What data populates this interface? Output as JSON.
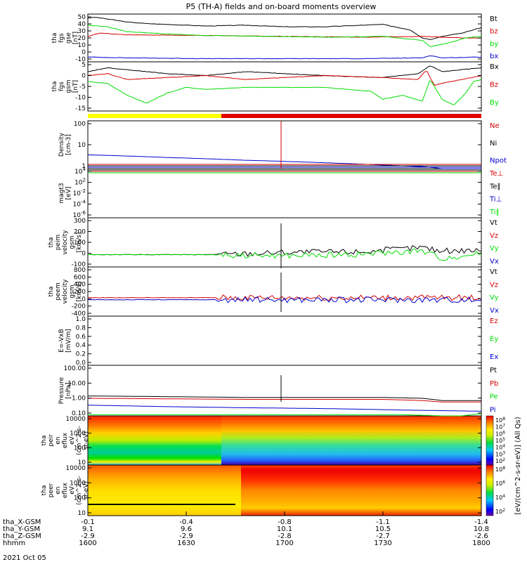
{
  "title": "P5 (TH-A) fields and on-board moments overview",
  "colors": {
    "black": "#000000",
    "red": "#d40000",
    "green": "#00dd00",
    "blue": "#0000cc",
    "yellow": "#ffff00",
    "barred": "#e00000"
  },
  "chart_data": {
    "type": "line",
    "x_ticks": [
      "1600",
      "1630",
      "1700",
      "1730",
      "1800"
    ],
    "panels": [
      {
        "id": "fgs-gse",
        "ylabel": [
          "tha",
          "fgs",
          "gse",
          "[nT]"
        ],
        "ylim": [
          -10,
          50
        ],
        "ticks": [
          "50",
          "40",
          "30",
          "20",
          "10",
          "0",
          "-10"
        ],
        "legend": [
          {
            "text": "Bt",
            "color": "black"
          },
          {
            "text": "bz",
            "color": "red"
          },
          {
            "text": "by",
            "color": "green"
          },
          {
            "text": "bx",
            "color": "blue"
          }
        ],
        "series": [
          {
            "color": "black",
            "x": [
              0,
              0.02,
              0.06,
              0.1,
              0.15,
              0.2,
              0.3,
              0.4,
              0.5,
              0.6,
              0.7,
              0.75,
              0.82,
              0.85,
              0.87,
              0.9,
              0.95,
              1.0
            ],
            "y": [
              45,
              46,
              43,
              40,
              38,
              37,
              35,
              36,
              34,
              34,
              36,
              37,
              30,
              20,
              18,
              22,
              26,
              33
            ]
          },
          {
            "color": "red",
            "x": [
              0,
              0.03,
              0.1,
              0.3,
              0.5,
              0.7,
              0.85,
              0.9,
              0.95,
              1.0
            ],
            "y": [
              22,
              26,
              24,
              23,
              22,
              21,
              22,
              21,
              20,
              20
            ]
          },
          {
            "color": "green",
            "x": [
              0,
              0.05,
              0.1,
              0.2,
              0.3,
              0.45,
              0.6,
              0.75,
              0.85,
              0.87,
              0.92,
              0.96,
              1.0
            ],
            "y": [
              36,
              34,
              28,
              25,
              23,
              22,
              21,
              22,
              17,
              9,
              14,
              20,
              22
            ]
          },
          {
            "color": "blue",
            "x": [
              0,
              0.1,
              0.3,
              0.5,
              0.7,
              0.85,
              0.87,
              0.9,
              1.0
            ],
            "y": [
              -4,
              -5,
              -6,
              -6,
              -6,
              -5,
              -2,
              -5,
              -4
            ]
          }
        ]
      },
      {
        "id": "fgs-gsm",
        "ylabel": [
          "tha",
          "fgs",
          "gsm",
          "[nT]"
        ],
        "ylim": [
          -18,
          7
        ],
        "ticks": [
          "5",
          "0",
          "-5",
          "-10",
          "-15"
        ],
        "legend": [
          {
            "text": "Bx",
            "color": "black"
          },
          {
            "text": "Bz",
            "color": "red"
          },
          {
            "text": "By",
            "color": "green"
          }
        ],
        "series": [
          {
            "color": "black",
            "x": [
              0,
              0.05,
              0.1,
              0.2,
              0.3,
              0.4,
              0.5,
              0.6,
              0.75,
              0.84,
              0.87,
              0.9,
              0.95,
              1.0
            ],
            "y": [
              2,
              4,
              3,
              1,
              0,
              2,
              1,
              0,
              -1,
              1,
              5,
              2,
              3,
              4
            ]
          },
          {
            "color": "red",
            "x": [
              0,
              0.05,
              0.1,
              0.2,
              0.3,
              0.4,
              0.5,
              0.6,
              0.75,
              0.84,
              0.86,
              0.88,
              0.9,
              0.95,
              1.0
            ],
            "y": [
              0,
              1,
              -2,
              -1,
              0,
              -2,
              -1,
              0,
              -1,
              -2,
              3,
              -5,
              -4,
              -2,
              0
            ]
          },
          {
            "color": "green",
            "x": [
              0,
              0.05,
              0.1,
              0.15,
              0.2,
              0.25,
              0.3,
              0.4,
              0.5,
              0.6,
              0.72,
              0.75,
              0.8,
              0.85,
              0.87,
              0.9,
              0.93,
              0.96,
              0.98,
              1.0
            ],
            "y": [
              -3,
              -4,
              -10,
              -14,
              -9,
              -6,
              -7,
              -6,
              -6,
              -6,
              -8,
              -12,
              -10,
              -13,
              -2,
              -12,
              -15,
              -9,
              -3,
              -2
            ]
          }
        ]
      },
      {
        "id": "density",
        "ylabel": [
          "Density",
          "[cm-3]"
        ],
        "log": true,
        "ylim": [
          0.3,
          300
        ],
        "ticks": [
          "100",
          "10",
          "1"
        ],
        "legend": [
          {
            "text": "Ne",
            "color": "red"
          },
          {
            "text": "Ni",
            "color": "black"
          },
          {
            "text": "Npot",
            "color": "blue"
          }
        ],
        "series": [
          {
            "color": "blue",
            "x": [
              0,
              0.2,
              0.4,
              0.6,
              0.75,
              0.85,
              0.9,
              1.0
            ],
            "y": [
              2.2,
              1.5,
              1.0,
              0.7,
              0.5,
              0.4,
              0.3,
              0.3
            ]
          }
        ]
      },
      {
        "id": "temperature",
        "ylabel": [
          "magt3",
          "[eV]"
        ],
        "log": true,
        "ticks": [
          "10",
          "10",
          "10",
          "10",
          "10"
        ],
        "tick_exponents": [
          "4",
          "2",
          "-2",
          "-4",
          "-6"
        ],
        "legend": [
          {
            "text": "Te⊥",
            "color": "red"
          },
          {
            "text": "Te∥",
            "color": "black"
          },
          {
            "text": "Ti⊥",
            "color": "blue"
          },
          {
            "text": "Ti∥",
            "color": "green"
          }
        ]
      },
      {
        "id": "peim-velocity",
        "ylabel": [
          "tha",
          "peim",
          "velocity",
          "gsm",
          "[km/s]"
        ],
        "ylim": [
          -100,
          300
        ],
        "ticks": [
          "300",
          "200",
          "100",
          "0",
          "-100"
        ],
        "legend": [
          {
            "text": "Vt",
            "color": "black"
          },
          {
            "text": "Vz",
            "color": "red"
          },
          {
            "text": "Vy",
            "color": "green"
          },
          {
            "text": "Vx",
            "color": "blue"
          }
        ],
        "series": [
          {
            "color": "black",
            "x": [
              0,
              0.3,
              0.5,
              0.7,
              0.85,
              0.9,
              1.0
            ],
            "y": [
              0,
              0,
              20,
              25,
              60,
              30,
              40
            ]
          },
          {
            "color": "green",
            "x": [
              0,
              0.3,
              0.5,
              0.7,
              0.85,
              0.9,
              1.0
            ],
            "y": [
              0,
              0,
              -10,
              5,
              30,
              -30,
              10
            ]
          }
        ]
      },
      {
        "id": "peem-velocity",
        "ylabel": [
          "tha",
          "peem",
          "velocity",
          "gsm",
          "[km/s]"
        ],
        "ylim": [
          -400,
          800
        ],
        "ticks": [
          "800",
          "600",
          "400",
          "200",
          "0",
          "-200",
          "-400"
        ],
        "legend": [
          {
            "text": "Vt",
            "color": "black"
          },
          {
            "text": "Vz",
            "color": "red"
          },
          {
            "text": "Vy",
            "color": "green"
          },
          {
            "text": "Vx",
            "color": "blue"
          }
        ],
        "series": [
          {
            "color": "red",
            "x": [
              0,
              0.32
            ],
            "y": [
              50,
              50
            ]
          },
          {
            "color": "blue",
            "x": [
              0,
              0.32
            ],
            "y": [
              0,
              0
            ]
          }
        ]
      },
      {
        "id": "efield",
        "ylabel": [
          "E=-VxB",
          "[mV/m]"
        ],
        "ylim": [
          0,
          1
        ],
        "ticks": [
          "1.0",
          "0.8",
          "0.6",
          "0.4",
          "0.2",
          "0.0"
        ],
        "legend": [
          {
            "text": "Ez",
            "color": "red"
          },
          {
            "text": "Ey",
            "color": "green"
          },
          {
            "text": "Ex",
            "color": "blue"
          }
        ]
      },
      {
        "id": "pressure",
        "ylabel": [
          "Pressure",
          "[nPa]"
        ],
        "log": true,
        "ylim": [
          0.05,
          100
        ],
        "ticks": [
          "100.00",
          "10.00",
          "1.00",
          "0.10"
        ],
        "legend": [
          {
            "text": "Pt",
            "color": "black"
          },
          {
            "text": "Pb",
            "color": "red"
          },
          {
            "text": "Pe",
            "color": "green"
          },
          {
            "text": "Pi",
            "color": "blue"
          }
        ],
        "series": [
          {
            "color": "black",
            "x": [
              0,
              0.2,
              0.4,
              0.6,
              0.75,
              0.85,
              0.9,
              0.95,
              1.0
            ],
            "y": [
              1.0,
              0.9,
              0.8,
              0.8,
              0.8,
              0.7,
              0.5,
              0.5,
              0.5
            ]
          },
          {
            "color": "red",
            "x": [
              0,
              0.2,
              0.4,
              0.6,
              0.75,
              0.85,
              0.9,
              0.95,
              1.0
            ],
            "y": [
              0.7,
              0.65,
              0.6,
              0.6,
              0.6,
              0.5,
              0.4,
              0.4,
              0.4
            ]
          },
          {
            "color": "blue",
            "x": [
              0,
              0.2,
              0.4,
              0.6,
              0.8,
              1.0
            ],
            "y": [
              0.25,
              0.2,
              0.17,
              0.15,
              0.12,
              0.1
            ]
          },
          {
            "color": "green",
            "x": [
              0,
              0.3,
              0.6,
              0.8,
              0.9,
              0.95,
              1.0
            ],
            "y": [
              0.06,
              0.06,
              0.06,
              0.06,
              0.05,
              0.05,
              0.07
            ]
          }
        ]
      },
      {
        "id": "peir-spectrogram",
        "type": "heatmap",
        "ylabel": [
          "tha",
          "peir",
          "en",
          "eflux",
          "eV",
          "(cm^2-s-",
          "sr-eV)"
        ],
        "ticks": [
          "10000",
          "1000",
          "100",
          "10"
        ],
        "colorbar": {
          "label": "[eV/(cm^2-s-sr-eV)] (All Qs)",
          "ticks": [
            "10",
            "10",
            "10",
            "10",
            "10",
            "10",
            "10"
          ],
          "exponents": [
            "8",
            "7",
            "6",
            "5",
            "4",
            "3",
            "2"
          ]
        }
      },
      {
        "id": "peer-spectrogram",
        "type": "heatmap",
        "ylabel": [
          "tha",
          "peer",
          "en",
          "eflux",
          "eV",
          "(cm^2-s-",
          "sr-eV)"
        ],
        "ticks": [
          "10000",
          "1000",
          "100",
          "10"
        ],
        "colorbar": {
          "ticks": [
            "10",
            "10",
            "10",
            "10"
          ],
          "exponents": [
            "8",
            "6",
            "4",
            "2"
          ]
        }
      }
    ],
    "x_axis_rows": [
      {
        "label": "tha_X-GSM",
        "values": [
          "-0.1",
          "-0.4",
          "-0.8",
          "-1.1",
          "-1.4"
        ]
      },
      {
        "label": "tha_Y-GSM",
        "values": [
          "9.1",
          "9.6",
          "10.1",
          "10.5",
          "10.8"
        ]
      },
      {
        "label": "tha_Z-GSM",
        "values": [
          "-2.9",
          "-2.9",
          "-2.8",
          "-2.7",
          "-2.6"
        ]
      },
      {
        "label": "hhmm",
        "values": [
          "1600",
          "1630",
          "1700",
          "1730",
          "1800"
        ]
      }
    ],
    "date": "2021 Oct 05"
  }
}
